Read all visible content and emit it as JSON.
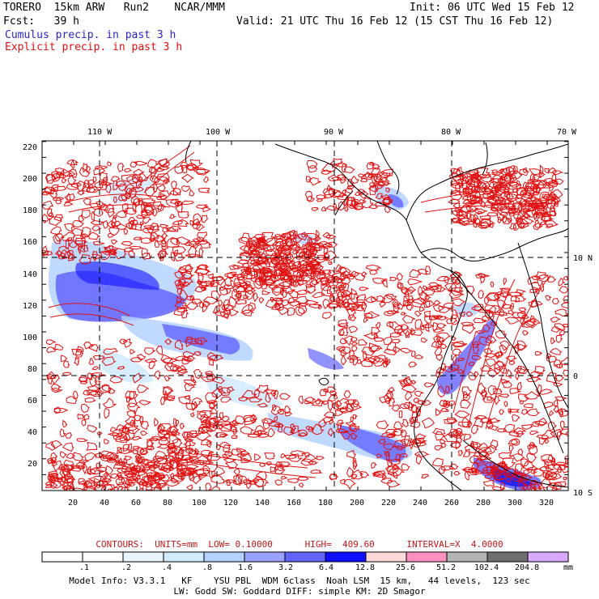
{
  "header": {
    "model": "TORERO  15km ARW   Run2    NCAR/MMM",
    "init": "Init: 06 UTC Wed 15 Feb 12",
    "fcst": "Fcst:   39 h",
    "valid": "Valid: 21 UTC Thu 16 Feb 12 (15 CST Thu 16 Feb 12)",
    "legend_cumulus": "Cumulus precip. in past 3 h",
    "legend_explicit": "Explicit precip. in past 3 h"
  },
  "map": {
    "lon_labels": [
      "110 W",
      "100 W",
      "90 W",
      "80 W",
      "70 W"
    ],
    "lat_labels": [
      "10 N",
      "0",
      "10 S"
    ],
    "y_ticks": [
      "220",
      "200",
      "180",
      "160",
      "140",
      "120",
      "100",
      "80",
      "60",
      "40",
      "20"
    ],
    "x_ticks": [
      "20",
      "40",
      "60",
      "80",
      "100",
      "120",
      "140",
      "160",
      "180",
      "200",
      "220",
      "240",
      "260",
      "280",
      "300",
      "320"
    ]
  },
  "contours": "CONTOURS:  UNITS=mm  LOW= 0.10000      HIGH=  409.60      INTERVAL=X  4.0000",
  "colorbar": {
    "labels": [
      ".1",
      ".2",
      ".4",
      ".8",
      "1.6",
      "3.2",
      "6.4",
      "12.8",
      "25.6",
      "51.2",
      "102.4",
      "204.8"
    ],
    "colors": [
      "#ffffff",
      "#ffffff",
      "#e8f6ff",
      "#d2ecff",
      "#b4d2ff",
      "#9aa2ff",
      "#6464ff",
      "#1010ff",
      "#ffd8d8",
      "#ff90c0",
      "#b4b4b4",
      "#6e6e6e",
      "#d8a8ff"
    ],
    "units": "mm"
  },
  "model_info": {
    "line1": "Model Info: V3.3.1   KF    YSU PBL  WDM 6class  Noah LSM  15 km,   44 levels,  123 sec",
    "line2": "LW: Godd SW: Goddard DIFF: simple KM: 2D Smagor"
  },
  "colors": {
    "cumulus": "#2a24c8",
    "explicit": "#e01010",
    "precip_light": "#b4d2ff",
    "precip_mid": "#6464ff",
    "precip_heavy": "#1010ff"
  }
}
